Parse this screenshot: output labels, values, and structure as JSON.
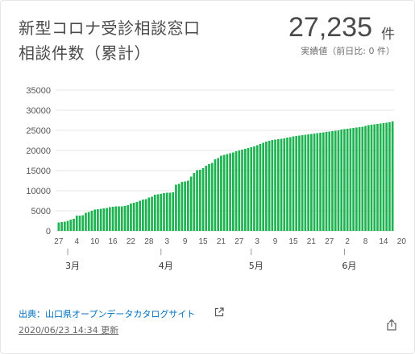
{
  "header": {
    "title_line1": "新型コロナ受診相談窓口",
    "title_line2": "相談件数（累計）",
    "value": "27,235",
    "unit": "件",
    "subvalue": "実績値（前日比: 0 件）"
  },
  "footer": {
    "source": "出典：山口県オープンデータカタログサイト",
    "updated": "2020/06/23 14:34 更新"
  },
  "icons": {
    "external": "external-link-icon",
    "share": "share-icon"
  },
  "colors": {
    "bar": "#1db351",
    "grid": "#e4e4e4",
    "tick_text": "#555555"
  },
  "chart_data": {
    "type": "bar",
    "title": "",
    "xlabel": "",
    "ylabel": "",
    "ylim": [
      0,
      35000
    ],
    "yticks": [
      0,
      5000,
      10000,
      15000,
      20000,
      25000,
      30000,
      35000
    ],
    "grid": true,
    "x_start": "2020-02-27",
    "xtick_labels": [
      "27",
      "4",
      "10",
      "16",
      "22",
      "28",
      "3",
      "9",
      "15",
      "21",
      "27",
      "3",
      "9",
      "15",
      "21",
      "27",
      "2",
      "8",
      "14",
      "20"
    ],
    "month_labels": [
      "3月",
      "4月",
      "5月",
      "6月"
    ],
    "values": [
      2100,
      2200,
      2300,
      2500,
      2800,
      3000,
      3800,
      3800,
      3900,
      4500,
      4700,
      5000,
      5300,
      5400,
      5500,
      5600,
      5700,
      5900,
      6000,
      6100,
      6100,
      6100,
      6200,
      6400,
      6800,
      7000,
      7200,
      7500,
      7800,
      7900,
      8300,
      8500,
      9000,
      9100,
      9200,
      9400,
      9500,
      9500,
      9600,
      11500,
      11700,
      12200,
      12300,
      12500,
      13500,
      14400,
      15100,
      15200,
      15600,
      16200,
      16600,
      16900,
      17800,
      18100,
      18700,
      18900,
      19100,
      19300,
      19500,
      19800,
      20000,
      20200,
      20400,
      20600,
      20800,
      21000,
      21300,
      21600,
      21900,
      22200,
      22400,
      22600,
      22700,
      22800,
      22900,
      23000,
      23200,
      23300,
      23500,
      23600,
      23700,
      23800,
      23900,
      24000,
      24100,
      24200,
      24300,
      24400,
      24500,
      24600,
      24700,
      24800,
      24900,
      25000,
      25200,
      25300,
      25400,
      25500,
      25600,
      25700,
      25800,
      25900,
      26100,
      26300,
      26400,
      26500,
      26600,
      26700,
      26800,
      26900,
      27000,
      27235
    ]
  }
}
